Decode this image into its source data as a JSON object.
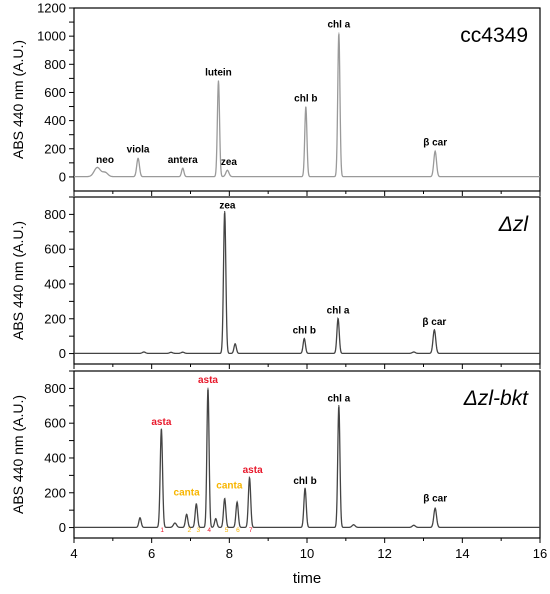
{
  "chart_data": [
    {
      "type": "line",
      "panel_label": "cc4349",
      "ylabel": "ABS 440 nm (A.U.)",
      "ylim": [
        -100,
        1200
      ],
      "yticks": [
        0,
        100,
        200,
        300,
        400,
        500,
        600,
        700,
        800,
        900,
        1000,
        1100,
        1200
      ],
      "line_color": "#9a9a9a",
      "baseline": 2,
      "peaks": [
        {
          "x": 4.6,
          "y": 65,
          "w": 0.08
        },
        {
          "x": 4.8,
          "y": 30,
          "w": 0.07
        },
        {
          "x": 5.65,
          "y": 130,
          "w": 0.035
        },
        {
          "x": 6.8,
          "y": 60,
          "w": 0.03
        },
        {
          "x": 7.72,
          "y": 680,
          "w": 0.028
        },
        {
          "x": 7.95,
          "y": 45,
          "w": 0.04
        },
        {
          "x": 9.97,
          "y": 495,
          "w": 0.028
        },
        {
          "x": 10.82,
          "y": 1020,
          "w": 0.028
        },
        {
          "x": 13.3,
          "y": 180,
          "w": 0.035
        }
      ],
      "labels": [
        {
          "text": "neo",
          "x": 4.8,
          "y": 100,
          "color": "#000000"
        },
        {
          "text": "viola",
          "x": 5.65,
          "y": 175,
          "color": "#000000"
        },
        {
          "text": "antera",
          "x": 6.8,
          "y": 100,
          "color": "#000000"
        },
        {
          "text": "lutein",
          "x": 7.72,
          "y": 720,
          "color": "#000000"
        },
        {
          "text": "zea",
          "x": 7.99,
          "y": 85,
          "color": "#000000"
        },
        {
          "text": "chl b",
          "x": 9.97,
          "y": 535,
          "color": "#000000"
        },
        {
          "text": "chl a",
          "x": 10.82,
          "y": 1060,
          "color": "#000000"
        },
        {
          "text": "β car",
          "x": 13.3,
          "y": 225,
          "color": "#000000"
        }
      ],
      "number_markers": []
    },
    {
      "type": "line",
      "panel_label": "Δzl",
      "ylabel": "ABS 440 nm (A.U.)",
      "ylim": [
        -60,
        900
      ],
      "yticks": [
        0,
        100,
        200,
        300,
        400,
        500,
        600,
        700,
        800,
        900
      ],
      "line_color": "#444444",
      "baseline": 1,
      "peaks": [
        {
          "x": 5.8,
          "y": 8,
          "w": 0.04
        },
        {
          "x": 6.5,
          "y": 6,
          "w": 0.04
        },
        {
          "x": 6.8,
          "y": 7,
          "w": 0.04
        },
        {
          "x": 7.88,
          "y": 815,
          "w": 0.03
        },
        {
          "x": 8.15,
          "y": 55,
          "w": 0.03
        },
        {
          "x": 9.93,
          "y": 85,
          "w": 0.03
        },
        {
          "x": 10.8,
          "y": 200,
          "w": 0.03
        },
        {
          "x": 12.75,
          "y": 8,
          "w": 0.04
        },
        {
          "x": 13.28,
          "y": 135,
          "w": 0.035
        }
      ],
      "labels": [
        {
          "text": "zea",
          "x": 7.95,
          "y": 835,
          "color": "#000000"
        },
        {
          "text": "chl b",
          "x": 9.93,
          "y": 115,
          "color": "#000000"
        },
        {
          "text": "chl a",
          "x": 10.8,
          "y": 230,
          "color": "#000000"
        },
        {
          "text": "β car",
          "x": 13.28,
          "y": 165,
          "color": "#000000"
        }
      ],
      "number_markers": []
    },
    {
      "type": "line",
      "panel_label": "Δzl-bkt",
      "ylabel": "ABS 440 nm (A.U.)",
      "ylim": [
        -60,
        900
      ],
      "yticks": [
        0,
        100,
        200,
        300,
        400,
        500,
        600,
        700,
        800,
        900
      ],
      "line_color": "#444444",
      "baseline": 1,
      "peaks": [
        {
          "x": 5.7,
          "y": 55,
          "w": 0.03
        },
        {
          "x": 6.25,
          "y": 565,
          "w": 0.03
        },
        {
          "x": 6.6,
          "y": 25,
          "w": 0.04
        },
        {
          "x": 6.9,
          "y": 75,
          "w": 0.03
        },
        {
          "x": 7.15,
          "y": 135,
          "w": 0.03
        },
        {
          "x": 7.45,
          "y": 800,
          "w": 0.028
        },
        {
          "x": 7.65,
          "y": 50,
          "w": 0.03
        },
        {
          "x": 7.88,
          "y": 165,
          "w": 0.03
        },
        {
          "x": 8.2,
          "y": 145,
          "w": 0.03
        },
        {
          "x": 8.52,
          "y": 285,
          "w": 0.03
        },
        {
          "x": 9.95,
          "y": 225,
          "w": 0.03
        },
        {
          "x": 10.82,
          "y": 700,
          "w": 0.028
        },
        {
          "x": 11.2,
          "y": 15,
          "w": 0.04
        },
        {
          "x": 12.75,
          "y": 12,
          "w": 0.04
        },
        {
          "x": 13.3,
          "y": 110,
          "w": 0.035
        }
      ],
      "labels": [
        {
          "text": "asta",
          "x": 6.25,
          "y": 590,
          "color": "#e8192c"
        },
        {
          "text": "asta",
          "x": 7.45,
          "y": 830,
          "color": "#e8192c"
        },
        {
          "text": "canta",
          "x": 6.9,
          "y": 185,
          "color": "#f7b500"
        },
        {
          "text": "canta",
          "x": 8.0,
          "y": 225,
          "color": "#f7b500"
        },
        {
          "text": "asta",
          "x": 8.6,
          "y": 315,
          "color": "#e8192c"
        },
        {
          "text": "chl b",
          "x": 9.95,
          "y": 250,
          "color": "#000000"
        },
        {
          "text": "chl a",
          "x": 10.82,
          "y": 725,
          "color": "#000000"
        },
        {
          "text": "β car",
          "x": 13.3,
          "y": 150,
          "color": "#000000"
        }
      ],
      "number_markers": [
        {
          "text": "1",
          "x": 6.27,
          "color": "#e8192c"
        },
        {
          "text": "2",
          "x": 6.97,
          "color": "#f7b500"
        },
        {
          "text": "3",
          "x": 7.2,
          "color": "#f7b500"
        },
        {
          "text": "4",
          "x": 7.48,
          "color": "#e8192c"
        },
        {
          "text": "5",
          "x": 7.93,
          "color": "#f7b500"
        },
        {
          "text": "6",
          "x": 8.22,
          "color": "#f7b500"
        },
        {
          "text": "7",
          "x": 8.55,
          "color": "#e8192c"
        }
      ]
    }
  ],
  "x_axis": {
    "label": "time",
    "xlim": [
      4,
      16
    ],
    "ticks": [
      4,
      6,
      8,
      10,
      12,
      14,
      16
    ]
  }
}
